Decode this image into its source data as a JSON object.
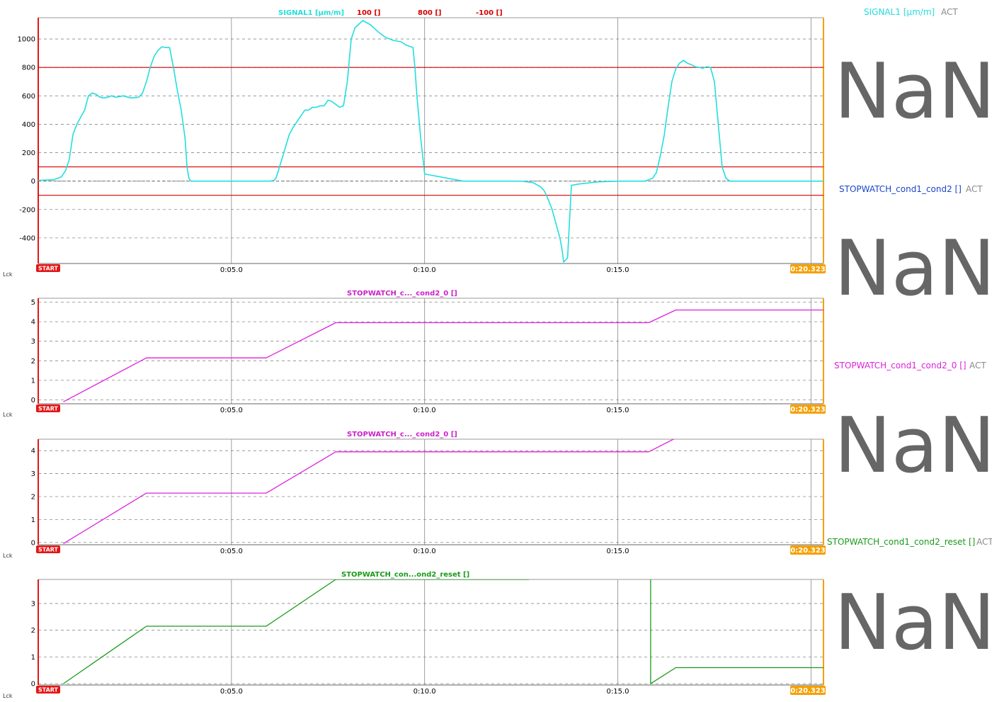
{
  "time_axis": {
    "ticks": [
      {
        "t": 5,
        "label": "0:05.0"
      },
      {
        "t": 10,
        "label": "0:10.0"
      },
      {
        "t": 15,
        "label": "0:15.0"
      }
    ],
    "range": [
      0,
      20.323
    ],
    "start_label": "START",
    "end_label": "0:20.323",
    "lck_label": "Lck"
  },
  "colors": {
    "signal": "#22dede",
    "stopwatch": "#dd22dd",
    "stopwatch_label": "#cc22cc",
    "reset": "#1a9a1a",
    "limit": "#d40000",
    "start_badge": "#e51515",
    "end_badge": "#f5a000",
    "status_blue": "#1c46c8",
    "value_text": "#666666"
  },
  "right_panel": [
    {
      "name": "SIGNAL1 [µm/m]",
      "status": "ACT",
      "value": "NaN",
      "color": "#22dede"
    },
    {
      "name": "STOPWATCH_cond1_cond2 []",
      "status": "ACT",
      "value": "NaN",
      "color": "#1c46c8"
    },
    {
      "name": "STOPWATCH_cond1_cond2_0 []",
      "status": "ACT",
      "value": "NaN",
      "color": "#dd22dd"
    },
    {
      "name": "STOPWATCH_cond1_cond2_reset []",
      "status": "ACT",
      "value": "NaN",
      "color": "#1a9a1a"
    }
  ],
  "chart_data": [
    {
      "type": "line",
      "title_items": [
        {
          "text": "SIGNAL1 [µm/m]",
          "color": "#22dede"
        },
        {
          "text": "100 []",
          "color": "#d40000"
        },
        {
          "text": "800 []",
          "color": "#d40000"
        },
        {
          "text": "-100 []",
          "color": "#d40000"
        }
      ],
      "xlim": [
        0,
        20.323
      ],
      "ylim": [
        -580,
        1150
      ],
      "yticks": [
        1000,
        800,
        600,
        400,
        200,
        0,
        -200,
        -400
      ],
      "grid": true,
      "limits": [
        800,
        100,
        -100
      ],
      "series": [
        {
          "name": "SIGNAL1 [µm/m]",
          "color": "#22dede",
          "x": [
            0,
            0.4,
            0.6,
            0.7,
            0.8,
            0.9,
            1.0,
            1.1,
            1.2,
            1.3,
            1.4,
            1.5,
            1.6,
            1.7,
            1.8,
            1.9,
            2.0,
            2.2,
            2.4,
            2.6,
            2.7,
            2.8,
            2.9,
            3.0,
            3.1,
            3.2,
            3.3,
            3.4,
            3.5,
            3.6,
            3.7,
            3.8,
            3.85,
            3.9,
            3.95,
            4.0,
            4.1,
            4.2,
            4.5,
            5.0,
            5.5,
            5.8,
            5.9,
            6.0,
            6.1,
            6.15,
            6.2,
            6.3,
            6.4,
            6.5,
            6.6,
            6.7,
            6.8,
            6.9,
            7.0,
            7.1,
            7.2,
            7.3,
            7.4,
            7.5,
            7.6,
            7.7,
            7.8,
            7.9,
            8.0,
            8.1,
            8.2,
            8.4,
            8.6,
            8.8,
            9.0,
            9.2,
            9.4,
            9.5,
            9.6,
            9.7,
            9.75,
            9.8,
            9.9,
            10.0,
            11.0,
            12.0,
            12.5,
            12.8,
            13.0,
            13.1,
            13.2,
            13.3,
            13.4,
            13.5,
            13.55,
            13.6,
            13.7,
            13.8,
            14.0,
            14.5,
            15.0,
            15.5,
            15.7,
            15.9,
            16.0,
            16.1,
            16.2,
            16.3,
            16.4,
            16.5,
            16.6,
            16.7,
            16.8,
            16.9,
            17.0,
            17.1,
            17.2,
            17.3,
            17.4,
            17.5,
            17.6,
            17.7,
            17.8,
            17.9,
            18.0,
            18.2,
            18.5,
            19.0,
            19.5,
            20.323
          ],
          "y": [
            5,
            10,
            30,
            70,
            150,
            330,
            400,
            450,
            500,
            600,
            620,
            610,
            590,
            585,
            590,
            600,
            590,
            600,
            585,
            590,
            620,
            700,
            800,
            880,
            920,
            945,
            940,
            940,
            800,
            640,
            500,
            300,
            100,
            20,
            0,
            0,
            0,
            0,
            0,
            0,
            0,
            0,
            0,
            0,
            5,
            20,
            60,
            150,
            240,
            330,
            380,
            420,
            460,
            500,
            500,
            520,
            520,
            530,
            530,
            570,
            560,
            540,
            520,
            530,
            700,
            1000,
            1080,
            1130,
            1100,
            1050,
            1010,
            990,
            980,
            960,
            950,
            940,
            800,
            600,
            300,
            50,
            0,
            0,
            0,
            -10,
            -40,
            -70,
            -130,
            -200,
            -300,
            -400,
            -470,
            -570,
            -540,
            -30,
            -20,
            -5,
            0,
            0,
            0,
            20,
            60,
            180,
            320,
            520,
            700,
            790,
            830,
            850,
            830,
            820,
            805,
            800,
            795,
            805,
            800,
            700,
            400,
            100,
            20,
            0,
            0,
            0,
            0,
            0,
            0,
            0
          ]
        }
      ]
    },
    {
      "type": "line",
      "title_items": [
        {
          "text": "STOPWATCH_c..._cond2_0 []",
          "color": "#cc22cc"
        }
      ],
      "xlim": [
        0,
        20.323
      ],
      "ylim": [
        -0.2,
        5.2
      ],
      "yticks": [
        5,
        4,
        3,
        2,
        1,
        0
      ],
      "grid": true,
      "series": [
        {
          "name": "STOPWATCH_c..._cond2_0 []",
          "color": "#dd22dd",
          "x": [
            0.65,
            2.8,
            5.9,
            7.7,
            15.8,
            16.5,
            20.323
          ],
          "y": [
            -0.1,
            2.15,
            2.15,
            3.95,
            3.95,
            4.6,
            4.6
          ]
        }
      ]
    },
    {
      "type": "line",
      "title_items": [
        {
          "text": "STOPWATCH_c..._cond2_0 []",
          "color": "#cc22cc"
        }
      ],
      "xlim": [
        0,
        20.323
      ],
      "ylim": [
        -0.1,
        4.5
      ],
      "yticks": [
        4,
        3,
        2,
        1,
        0
      ],
      "grid": true,
      "series": [
        {
          "name": "STOPWATCH_c..._cond2_0 []",
          "color": "#dd22dd",
          "x": [
            0.65,
            2.8,
            5.9,
            7.7,
            15.8,
            16.5,
            20.323
          ],
          "y": [
            -0.05,
            2.15,
            2.15,
            3.95,
            3.95,
            4.55,
            4.55
          ]
        }
      ]
    },
    {
      "type": "line",
      "title_items": [
        {
          "text": "STOPWATCH_con...ond2_reset []",
          "color": "#1a9a1a"
        }
      ],
      "xlim": [
        0,
        20.323
      ],
      "ylim": [
        -0.05,
        3.9
      ],
      "yticks": [
        3,
        2,
        1,
        0
      ],
      "grid": true,
      "series": [
        {
          "name": "STOPWATCH_con...ond2_reset []",
          "color": "#1a9a1a",
          "x": [
            0.65,
            2.8,
            5.9,
            7.7,
            12.7,
            null,
            15.85,
            15.85,
            16.5,
            20.323
          ],
          "y": [
            0,
            2.15,
            2.15,
            3.9,
            3.9,
            null,
            3.9,
            0,
            0.6,
            0.6
          ]
        }
      ]
    }
  ]
}
